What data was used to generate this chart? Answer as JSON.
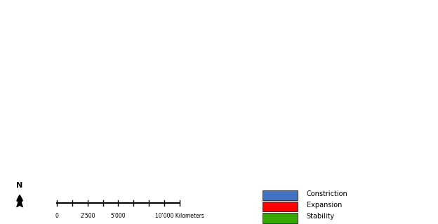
{
  "title": "",
  "background_color": "#ffffff",
  "ocean_color": "#ffffff",
  "land_color": "#b0b0b0",
  "border_color": "#e0e0e0",
  "constriction_color": "#4472c4",
  "expansion_color": "#ff0000",
  "stability_color": "#38a800",
  "legend_items": [
    "Constriction",
    "Expansion",
    "Stability"
  ],
  "legend_colors": [
    "#4472c4",
    "#ff0000",
    "#38a800"
  ],
  "scale_bar_label": "10'000 Kilometers",
  "scale_ticks": [
    "0",
    "2'500",
    "5'000",
    "10'000 Kilometers"
  ],
  "north_label": "N",
  "figsize": [
    6.24,
    3.2
  ],
  "dpi": 100
}
